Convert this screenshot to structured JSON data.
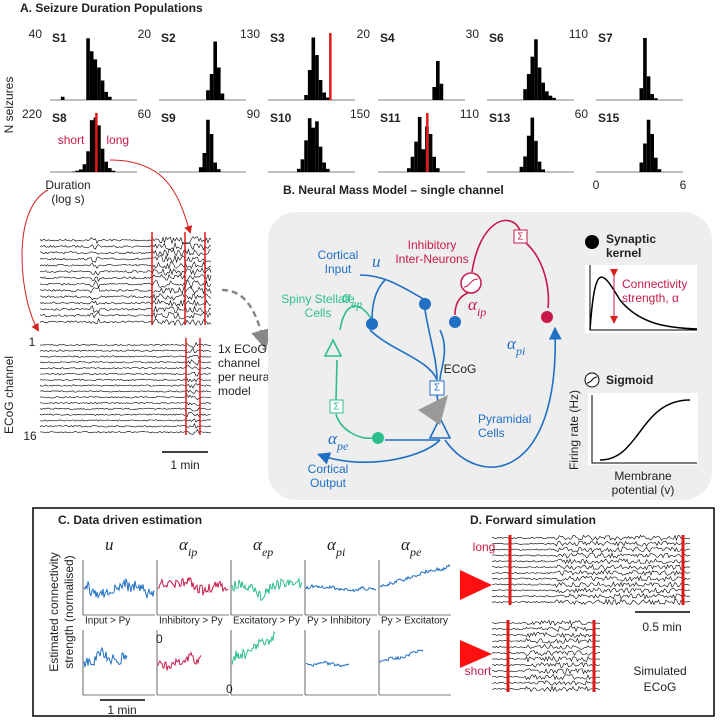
{
  "panel_a": {
    "title": "A. Seizure Duration Populations",
    "ylabel": "N seizures",
    "xlabel": [
      "Duration",
      "(log s)"
    ],
    "xlim": [
      0,
      6
    ],
    "xticks": [
      0,
      6
    ],
    "bin_edges": [
      0,
      0.25,
      0.5,
      0.75,
      1,
      1.25,
      1.5,
      1.75,
      2,
      2.25,
      2.5,
      2.75,
      3,
      3.25,
      3.5,
      3.75,
      4,
      4.25,
      4.5,
      4.75,
      5,
      5.25,
      5.5,
      5.75,
      6
    ],
    "subjects": [
      {
        "name": "S1",
        "ymax": 40,
        "counts": [
          0,
          0,
          0,
          2,
          0,
          0,
          0,
          0,
          0,
          0,
          38,
          30,
          25,
          20,
          12,
          5,
          2,
          0,
          0,
          0,
          0,
          0,
          0,
          0
        ]
      },
      {
        "name": "S2",
        "ymax": 20,
        "counts": [
          0,
          0,
          0,
          0,
          0,
          0,
          0,
          0,
          0,
          0,
          0,
          0,
          0,
          3,
          8,
          18,
          10,
          2,
          0,
          0,
          0,
          0,
          0,
          0
        ]
      },
      {
        "name": "S3",
        "ymax": 130,
        "counts": [
          0,
          0,
          0,
          0,
          0,
          0,
          0,
          0,
          0,
          0,
          10,
          60,
          125,
          90,
          40,
          15,
          5,
          0,
          0,
          0,
          0,
          0,
          0,
          0
        ],
        "threshold": 4.3
      },
      {
        "name": "S4",
        "ymax": 20,
        "counts": [
          0,
          0,
          0,
          0,
          0,
          0,
          0,
          0,
          0,
          0,
          0,
          0,
          0,
          0,
          0,
          4,
          12,
          5,
          0,
          0,
          0,
          0,
          0,
          0
        ]
      },
      {
        "name": "S6",
        "ymax": 30,
        "counts": [
          0,
          0,
          0,
          0,
          0,
          0,
          0,
          0,
          0,
          0,
          5,
          12,
          20,
          28,
          15,
          8,
          4,
          2,
          1,
          0,
          0,
          0,
          0,
          0
        ]
      },
      {
        "name": "S7",
        "ymax": 110,
        "counts": [
          0,
          0,
          0,
          0,
          0,
          0,
          0,
          0,
          0,
          0,
          0,
          0,
          20,
          105,
          40,
          10,
          3,
          0,
          0,
          0,
          0,
          0,
          0,
          0
        ]
      },
      {
        "name": "S8",
        "ymax": 220,
        "counts": [
          0,
          0,
          0,
          0,
          0,
          0,
          2,
          5,
          10,
          30,
          80,
          200,
          210,
          180,
          90,
          40,
          15,
          5,
          0,
          0,
          0,
          0,
          0,
          0
        ],
        "threshold": 3.2
      },
      {
        "name": "S9",
        "ymax": 60,
        "counts": [
          0,
          0,
          0,
          0,
          0,
          0,
          0,
          0,
          0,
          0,
          0,
          5,
          20,
          55,
          40,
          10,
          3,
          0,
          0,
          0,
          0,
          0,
          0,
          0
        ]
      },
      {
        "name": "S10",
        "ymax": 90,
        "counts": [
          0,
          0,
          0,
          0,
          0,
          0,
          0,
          0,
          5,
          20,
          50,
          85,
          70,
          80,
          40,
          15,
          5,
          0,
          0,
          0,
          0,
          0,
          0,
          0
        ]
      },
      {
        "name": "S11",
        "ymax": 150,
        "counts": [
          0,
          0,
          0,
          0,
          0,
          0,
          0,
          0,
          10,
          40,
          80,
          145,
          60,
          120,
          100,
          40,
          10,
          0,
          0,
          0,
          0,
          0,
          0,
          0
        ],
        "threshold": 3.4
      },
      {
        "name": "S13",
        "ymax": 110,
        "counts": [
          0,
          0,
          0,
          0,
          0,
          0,
          0,
          0,
          0,
          10,
          30,
          70,
          105,
          60,
          20,
          5,
          0,
          0,
          0,
          0,
          0,
          0,
          0,
          0
        ]
      },
      {
        "name": "S15",
        "ymax": 60,
        "counts": [
          0,
          0,
          0,
          0,
          0,
          0,
          0,
          0,
          0,
          0,
          0,
          0,
          10,
          30,
          55,
          40,
          15,
          3,
          0,
          0,
          0,
          0,
          0,
          0
        ]
      }
    ],
    "short_label": "short",
    "long_label": "long",
    "ecog": {
      "ylabel": "ECoG channel",
      "first": "1",
      "last": "16",
      "scale": "1 min",
      "note": [
        "1x ECoG",
        "channel",
        "per neural",
        "model"
      ]
    }
  },
  "panel_b": {
    "title": "B. Neural Mass Model – single channel",
    "inhibitory": [
      "Inhibitory",
      "Inter-Neurons"
    ],
    "cortical_input": [
      "Cortical",
      "Input"
    ],
    "u": "u",
    "spiny": [
      "Spiny Stellate",
      "Cells"
    ],
    "pyramidal": [
      "Pyramidal",
      "Cells"
    ],
    "cortical_output": [
      "Cortical",
      "Output"
    ],
    "ecog": "ECoG",
    "sum": "Σ",
    "alpha_ep": {
      "base": "α",
      "sub": "ep"
    },
    "alpha_ip": {
      "base": "α",
      "sub": "ip"
    },
    "alpha_pi": {
      "base": "α",
      "sub": "pi"
    },
    "alpha_pe": {
      "base": "α",
      "sub": "pe"
    },
    "kernel_title": [
      "Synaptic",
      "kernel"
    ],
    "kernel_label": [
      "Connectivity",
      "strength, α"
    ],
    "sigmoid_title": "Sigmoid",
    "sigmoid_ylabel": "Firing rate (Hz)",
    "sigmoid_xlabel": [
      "Membrane",
      "potential (v)"
    ]
  },
  "panel_c": {
    "title": "C. Data driven estimation",
    "ylabel": [
      "Estimated connectivity",
      "strength (normalised)"
    ],
    "params": [
      {
        "base": "u",
        "sub": ""
      },
      {
        "base": "α",
        "sub": "ip"
      },
      {
        "base": "α",
        "sub": "ep"
      },
      {
        "base": "α",
        "sub": "pi"
      },
      {
        "base": "α",
        "sub": "pe"
      }
    ],
    "connections": [
      "Input > Py",
      "Inhibitory > Py",
      "Excitatory > Py",
      "Py > Inhibitory",
      "Py > Excitatory"
    ],
    "zero": "0",
    "long": "long",
    "short": "short",
    "scale": "1 min"
  },
  "panel_d": {
    "title": "D. Forward simulation",
    "scale": "0.5 min",
    "label": [
      "Simulated",
      "ECoG"
    ]
  }
}
